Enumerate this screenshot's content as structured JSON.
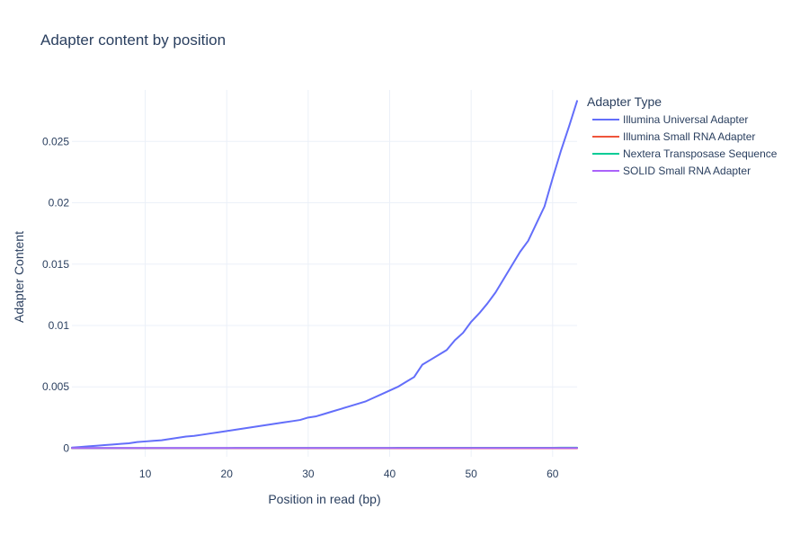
{
  "chart_data": {
    "type": "line",
    "title": "Adapter content by position",
    "xlabel": "Position in read (bp)",
    "ylabel": "Adapter Content",
    "xlim": [
      1,
      63
    ],
    "ylim": [
      -0.0007,
      0.0292
    ],
    "x_ticks": [
      10,
      20,
      30,
      40,
      50,
      60
    ],
    "y_ticks": [
      0,
      0.005,
      0.01,
      0.015,
      0.02,
      0.025
    ],
    "y_tick_labels": [
      "0",
      "0.005",
      "0.01",
      "0.015",
      "0.02",
      "0.025"
    ],
    "grid": true,
    "legend_title": "Adapter Type",
    "legend_position": "top-right outside",
    "x": [
      1,
      2,
      3,
      4,
      5,
      6,
      7,
      8,
      9,
      10,
      11,
      12,
      13,
      14,
      15,
      16,
      17,
      18,
      19,
      20,
      21,
      22,
      23,
      24,
      25,
      26,
      27,
      28,
      29,
      30,
      31,
      32,
      33,
      34,
      35,
      36,
      37,
      38,
      39,
      40,
      41,
      42,
      43,
      44,
      45,
      46,
      47,
      48,
      49,
      50,
      51,
      52,
      53,
      54,
      55,
      56,
      57,
      58,
      59,
      60,
      61,
      62,
      63
    ],
    "series": [
      {
        "name": "Illumina Universal Adapter",
        "color": "#636efa",
        "values": [
          5e-05,
          0.0001,
          0.00015,
          0.0002,
          0.00025,
          0.0003,
          0.00035,
          0.0004,
          0.0005,
          0.00055,
          0.0006,
          0.00065,
          0.00075,
          0.00085,
          0.00095,
          0.001,
          0.0011,
          0.0012,
          0.0013,
          0.0014,
          0.0015,
          0.0016,
          0.0017,
          0.0018,
          0.0019,
          0.002,
          0.0021,
          0.0022,
          0.0023,
          0.0025,
          0.0026,
          0.0028,
          0.003,
          0.0032,
          0.0034,
          0.0036,
          0.0038,
          0.0041,
          0.0044,
          0.0047,
          0.005,
          0.0054,
          0.0058,
          0.0068,
          0.0072,
          0.0076,
          0.008,
          0.0088,
          0.0094,
          0.0103,
          0.011,
          0.0118,
          0.0127,
          0.0138,
          0.0149,
          0.016,
          0.0169,
          0.0183,
          0.0197,
          0.022,
          0.0242,
          0.0262,
          0.0283
        ]
      },
      {
        "name": "Illumina Small RNA Adapter",
        "color": "#ef553b",
        "values": [
          0,
          0,
          0,
          0,
          0,
          0,
          0,
          0,
          0,
          0,
          0,
          0,
          0,
          0,
          0,
          0,
          0,
          0,
          0,
          0,
          0,
          0,
          0,
          0,
          0,
          0,
          0,
          0,
          0,
          0,
          0,
          0,
          0,
          0,
          0,
          0,
          0,
          0,
          0,
          0,
          0,
          0,
          0,
          0,
          0,
          0,
          0,
          0,
          0,
          0,
          0,
          0,
          0,
          0,
          0,
          0,
          0,
          0,
          0,
          0,
          0,
          0,
          0
        ]
      },
      {
        "name": "Nextera Transposase Sequence",
        "color": "#00cc96",
        "values": [
          1e-05,
          1e-05,
          1e-05,
          1e-05,
          1e-05,
          1e-05,
          1e-05,
          1e-05,
          1e-05,
          1e-05,
          1e-05,
          1e-05,
          1e-05,
          1e-05,
          1e-05,
          1e-05,
          1e-05,
          1e-05,
          1e-05,
          1e-05,
          2e-05,
          2e-05,
          2e-05,
          2e-05,
          2e-05,
          2e-05,
          2e-05,
          2e-05,
          2e-05,
          2e-05,
          2e-05,
          2e-05,
          2e-05,
          2e-05,
          2e-05,
          2e-05,
          2e-05,
          2e-05,
          2e-05,
          2e-05,
          3e-05,
          3e-05,
          3e-05,
          3e-05,
          3e-05,
          3e-05,
          3e-05,
          3e-05,
          3e-05,
          3e-05,
          3e-05,
          3e-05,
          3e-05,
          3e-05,
          3e-05,
          3e-05,
          3e-05,
          3e-05,
          3e-05,
          3e-05,
          4e-05,
          4e-05,
          4e-05
        ]
      },
      {
        "name": "SOLID Small RNA Adapter",
        "color": "#ab63fa",
        "values": [
          1e-05,
          1e-05,
          1e-05,
          1e-05,
          1e-05,
          1e-05,
          1e-05,
          1e-05,
          1e-05,
          1e-05,
          1e-05,
          1e-05,
          1e-05,
          1e-05,
          1e-05,
          1e-05,
          1e-05,
          1e-05,
          1e-05,
          1e-05,
          1e-05,
          1e-05,
          1e-05,
          1e-05,
          1e-05,
          1e-05,
          1e-05,
          1e-05,
          1e-05,
          1e-05,
          1e-05,
          1e-05,
          1e-05,
          1e-05,
          1e-05,
          1e-05,
          1e-05,
          1e-05,
          1e-05,
          1e-05,
          1e-05,
          1e-05,
          1e-05,
          1e-05,
          1e-05,
          1e-05,
          1e-05,
          1e-05,
          1e-05,
          1e-05,
          1e-05,
          1e-05,
          1e-05,
          1e-05,
          1e-05,
          1e-05,
          1e-05,
          1e-05,
          1e-05,
          1e-05,
          1e-05,
          1e-05,
          1e-05
        ]
      }
    ]
  }
}
